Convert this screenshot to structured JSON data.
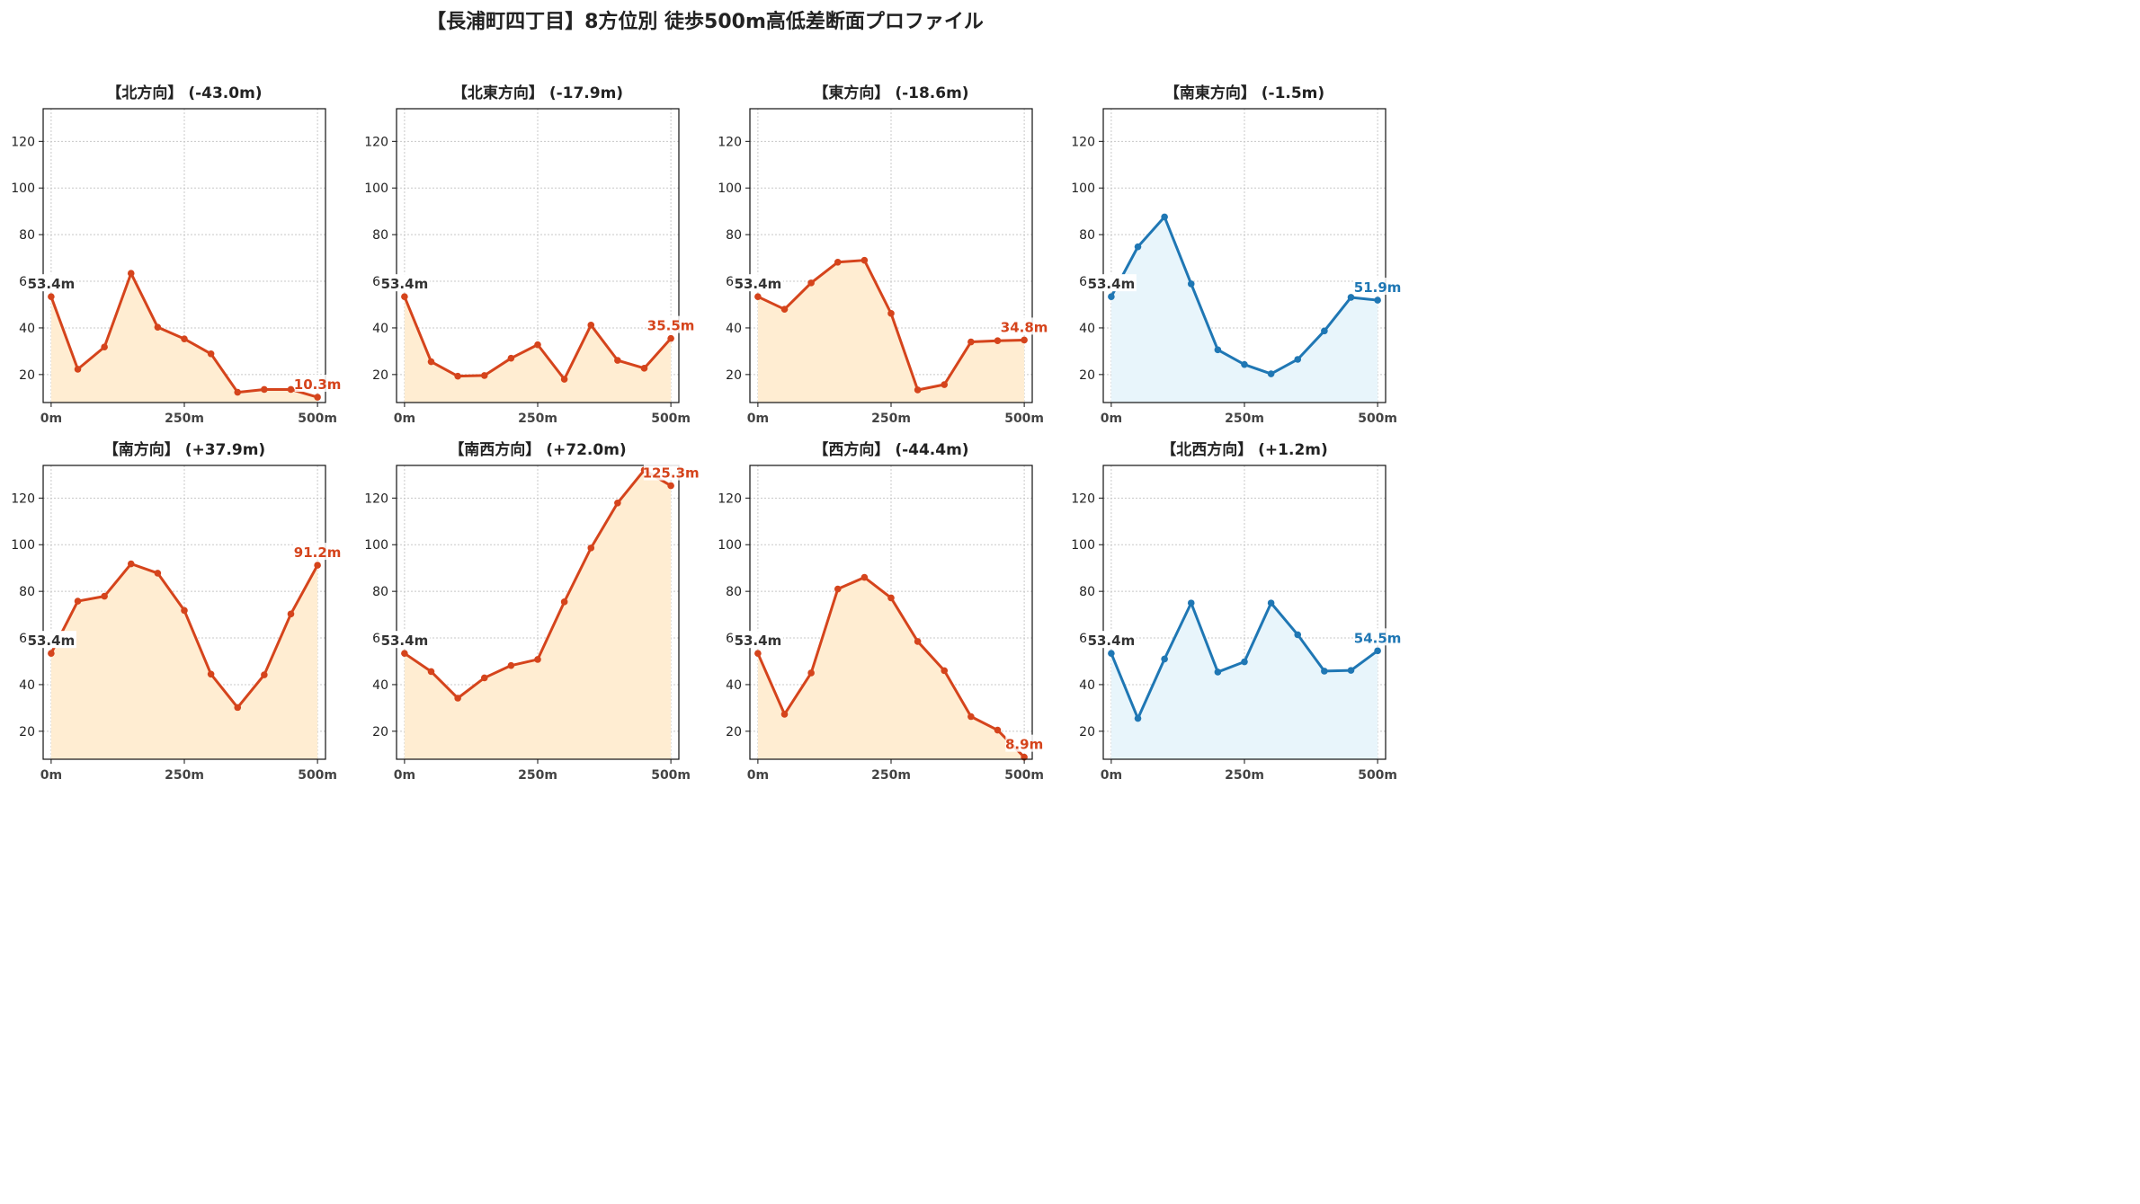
{
  "title": "【長浦町四丁目】8方位別 徒歩500m高低差断面プロファイル",
  "colors": {
    "down_line": "#d5441c",
    "down_fill": "#ffedd2",
    "up_line": "#1f77b4",
    "up_fill": "#e8f5fb",
    "start_label": "#333333",
    "grid": "#c8c8c8"
  },
  "chart_data": [
    {
      "type": "line",
      "title": "【北方向】 (-43.0m)",
      "color": "down",
      "x": [
        0,
        50,
        100,
        150,
        200,
        250,
        300,
        350,
        400,
        450,
        500
      ],
      "values": [
        53.4,
        22.3,
        31.8,
        63.4,
        40.3,
        35.3,
        28.9,
        12.4,
        13.6,
        13.6,
        10.3
      ],
      "start_label": "53.4m",
      "end_label": "10.3m",
      "xlim": [
        -15,
        515
      ],
      "ylim": [
        8,
        134
      ],
      "xticks": [
        0,
        250,
        500
      ],
      "xtick_labels": [
        "0m",
        "250m",
        "500m"
      ],
      "yticks": [
        20,
        40,
        60,
        80,
        100,
        120
      ],
      "ytick_labels": [
        "20",
        "40",
        "60",
        "80",
        "100",
        "120"
      ],
      "grid": true
    },
    {
      "type": "line",
      "title": "【北東方向】 (-17.9m)",
      "color": "down",
      "x": [
        0,
        50,
        100,
        150,
        200,
        250,
        300,
        350,
        400,
        450,
        500
      ],
      "values": [
        53.4,
        25.5,
        19.3,
        19.6,
        27.0,
        32.8,
        18.0,
        41.2,
        26.1,
        22.7,
        35.5
      ],
      "start_label": "53.4m",
      "end_label": "35.5m",
      "xlim": [
        -15,
        515
      ],
      "ylim": [
        8,
        134
      ],
      "xticks": [
        0,
        250,
        500
      ],
      "xtick_labels": [
        "0m",
        "250m",
        "500m"
      ],
      "yticks": [
        20,
        40,
        60,
        80,
        100,
        120
      ],
      "ytick_labels": [
        "20",
        "40",
        "60",
        "80",
        "100",
        "120"
      ],
      "grid": true
    },
    {
      "type": "line",
      "title": "【東方向】 (-18.6m)",
      "color": "down",
      "x": [
        0,
        50,
        100,
        150,
        200,
        250,
        300,
        350,
        400,
        450,
        500
      ],
      "values": [
        53.4,
        48.0,
        59.3,
        68.2,
        69.0,
        46.2,
        13.4,
        15.7,
        34.0,
        34.5,
        34.8
      ],
      "start_label": "53.4m",
      "end_label": "34.8m",
      "xlim": [
        -15,
        515
      ],
      "ylim": [
        8,
        134
      ],
      "xticks": [
        0,
        250,
        500
      ],
      "xtick_labels": [
        "0m",
        "250m",
        "500m"
      ],
      "yticks": [
        20,
        40,
        60,
        80,
        100,
        120
      ],
      "ytick_labels": [
        "20",
        "40",
        "60",
        "80",
        "100",
        "120"
      ],
      "grid": true
    },
    {
      "type": "line",
      "title": "【南東方向】 (-1.5m)",
      "color": "up",
      "x": [
        0,
        50,
        100,
        150,
        200,
        250,
        300,
        350,
        400,
        450,
        500
      ],
      "values": [
        53.4,
        74.8,
        87.6,
        58.9,
        30.6,
        24.3,
        20.3,
        26.5,
        38.7,
        53.1,
        51.9
      ],
      "start_label": "53.4m",
      "end_label": "51.9m",
      "xlim": [
        -15,
        515
      ],
      "ylim": [
        8,
        134
      ],
      "xticks": [
        0,
        250,
        500
      ],
      "xtick_labels": [
        "0m",
        "250m",
        "500m"
      ],
      "yticks": [
        20,
        40,
        60,
        80,
        100,
        120
      ],
      "ytick_labels": [
        "20",
        "40",
        "60",
        "80",
        "100",
        "120"
      ],
      "grid": true
    },
    {
      "type": "line",
      "title": "【南方向】 (+37.9m)",
      "color": "down",
      "x": [
        0,
        50,
        100,
        150,
        200,
        250,
        300,
        350,
        400,
        450,
        500
      ],
      "values": [
        53.4,
        75.8,
        77.9,
        91.8,
        87.8,
        71.8,
        44.5,
        30.2,
        44.2,
        70.3,
        91.2
      ],
      "start_label": "53.4m",
      "end_label": "91.2m",
      "xlim": [
        -15,
        515
      ],
      "ylim": [
        8,
        134
      ],
      "xticks": [
        0,
        250,
        500
      ],
      "xtick_labels": [
        "0m",
        "250m",
        "500m"
      ],
      "yticks": [
        20,
        40,
        60,
        80,
        100,
        120
      ],
      "ytick_labels": [
        "20",
        "40",
        "60",
        "80",
        "100",
        "120"
      ],
      "grid": true
    },
    {
      "type": "line",
      "title": "【南西方向】 (+72.0m)",
      "color": "down",
      "x": [
        0,
        50,
        100,
        150,
        200,
        250,
        300,
        350,
        400,
        450,
        500
      ],
      "values": [
        53.4,
        45.6,
        34.2,
        42.9,
        48.2,
        50.8,
        75.5,
        98.6,
        117.9,
        132.0,
        125.3
      ],
      "start_label": "53.4m",
      "end_label": "125.3m",
      "xlim": [
        -15,
        515
      ],
      "ylim": [
        8,
        134
      ],
      "xticks": [
        0,
        250,
        500
      ],
      "xtick_labels": [
        "0m",
        "250m",
        "500m"
      ],
      "yticks": [
        20,
        40,
        60,
        80,
        100,
        120
      ],
      "ytick_labels": [
        "20",
        "40",
        "60",
        "80",
        "100",
        "120"
      ],
      "grid": true
    },
    {
      "type": "line",
      "title": "【西方向】 (-44.4m)",
      "color": "down",
      "x": [
        0,
        50,
        100,
        150,
        200,
        250,
        300,
        350,
        400,
        450,
        500
      ],
      "values": [
        53.4,
        27.3,
        45.0,
        81.0,
        86.0,
        77.2,
        58.5,
        46.0,
        26.3,
        20.5,
        8.9
      ],
      "start_label": "53.4m",
      "end_label": "8.9m",
      "xlim": [
        -15,
        515
      ],
      "ylim": [
        8,
        134
      ],
      "xticks": [
        0,
        250,
        500
      ],
      "xtick_labels": [
        "0m",
        "250m",
        "500m"
      ],
      "yticks": [
        20,
        40,
        60,
        80,
        100,
        120
      ],
      "ytick_labels": [
        "20",
        "40",
        "60",
        "80",
        "100",
        "120"
      ],
      "grid": true
    },
    {
      "type": "line",
      "title": "【北西方向】 (+1.2m)",
      "color": "up",
      "x": [
        0,
        50,
        100,
        150,
        200,
        250,
        300,
        350,
        400,
        450,
        500
      ],
      "values": [
        53.4,
        25.5,
        51.0,
        75.0,
        45.4,
        49.8,
        75.0,
        61.4,
        45.8,
        46.1,
        54.5
      ],
      "start_label": "53.4m",
      "end_label": "54.5m",
      "xlim": [
        -15,
        515
      ],
      "ylim": [
        8,
        134
      ],
      "xticks": [
        0,
        250,
        500
      ],
      "xtick_labels": [
        "0m",
        "250m",
        "500m"
      ],
      "yticks": [
        20,
        40,
        60,
        80,
        100,
        120
      ],
      "ytick_labels": [
        "20",
        "40",
        "60",
        "80",
        "100",
        "120"
      ],
      "grid": true
    }
  ]
}
